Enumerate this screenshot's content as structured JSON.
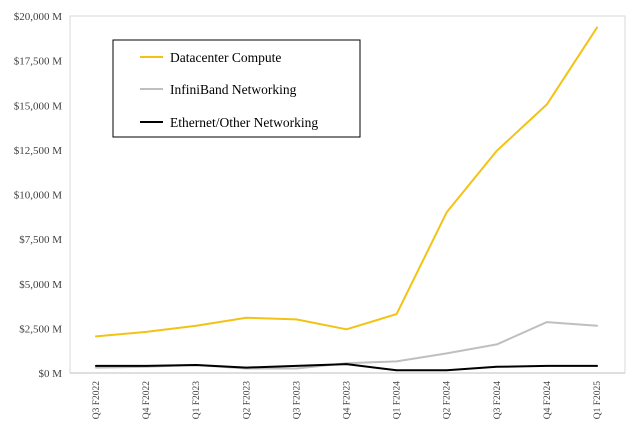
{
  "chart_data": {
    "type": "line",
    "categories": [
      "Q3 F2022",
      "Q4 F2022",
      "Q1 F2023",
      "Q2 F2023",
      "Q3 F2023",
      "Q4 F2023",
      "Q1 F2024",
      "Q2 F2024",
      "Q3 F2024",
      "Q4 F2024",
      "Q1 F2025"
    ],
    "series": [
      {
        "name": "Datacenter Compute",
        "color": "#F2C314",
        "values": [
          2050,
          2300,
          2650,
          3100,
          3000,
          2450,
          3300,
          9000,
          12450,
          15050,
          19350
        ]
      },
      {
        "name": "InfiniBand Networking",
        "color": "#BFBFBF",
        "values": [
          300,
          350,
          450,
          250,
          250,
          550,
          650,
          1100,
          1600,
          2850,
          2650
        ]
      },
      {
        "name": "Ethernet/Other Networking",
        "color": "#000000",
        "values": [
          400,
          400,
          450,
          300,
          400,
          500,
          150,
          150,
          350,
          400,
          400
        ]
      }
    ],
    "ylim": [
      0,
      20000
    ],
    "yticks": [
      {
        "value": 0,
        "label": "$0 M"
      },
      {
        "value": 2500,
        "label": "$2,500 M"
      },
      {
        "value": 5000,
        "label": "$5,000 M"
      },
      {
        "value": 7500,
        "label": "$7,500 M"
      },
      {
        "value": 10000,
        "label": "$10,000 M"
      },
      {
        "value": 12500,
        "label": "$12,500 M"
      },
      {
        "value": 15000,
        "label": "$15,000 M"
      },
      {
        "value": 17500,
        "label": "$17,500 M"
      },
      {
        "value": 20000,
        "label": "$20,000 M"
      }
    ],
    "grid": false,
    "legend": "top-left"
  }
}
